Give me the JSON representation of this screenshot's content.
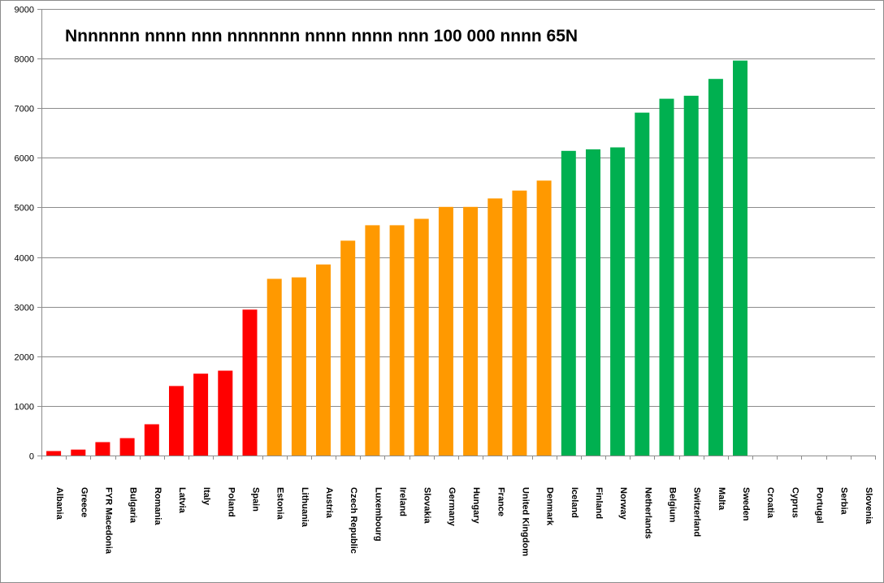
{
  "chart_data": {
    "type": "bar",
    "title": "Nnnnnnn nnnn nnn nnnnnnn nnnn nnnn nnn 100 000 nnnn 65N",
    "xlabel": "",
    "ylabel": "",
    "ylim": [
      0,
      9000
    ],
    "yticks": [
      0,
      1000,
      2000,
      3000,
      4000,
      5000,
      6000,
      7000,
      8000,
      9000
    ],
    "grid": true,
    "legend": "none",
    "categories": [
      "Albania",
      "Greece",
      "FYR Macedonia",
      "Bulgaria",
      "Romania",
      "Latvia",
      "Italy",
      "Poland",
      "Spain",
      "Estonia",
      "Lithuania",
      "Austria",
      "Czech Republic",
      "Luxembourg",
      "Ireland",
      "Slovakia",
      "Germany",
      "Hungary",
      "France",
      "United Kingdom",
      "Denmark",
      "Iceland",
      "Finland",
      "Norway",
      "Netherlands",
      "Belgium",
      "Switzerland",
      "Malta",
      "Sweden",
      "Croatia",
      "Cyprus",
      "Portugal",
      "Serbia",
      "Slovenia"
    ],
    "values": [
      90,
      120,
      270,
      350,
      630,
      1400,
      1650,
      1710,
      2940,
      3560,
      3590,
      3850,
      4330,
      4640,
      4640,
      4770,
      5010,
      5010,
      5180,
      5340,
      5540,
      6140,
      6170,
      6210,
      6910,
      7190,
      7250,
      7590,
      7960,
      null,
      null,
      null,
      null,
      null
    ],
    "bar_colors": [
      "#ff0000",
      "#ff0000",
      "#ff0000",
      "#ff0000",
      "#ff0000",
      "#ff0000",
      "#ff0000",
      "#ff0000",
      "#ff0000",
      "#ff9900",
      "#ff9900",
      "#ff9900",
      "#ff9900",
      "#ff9900",
      "#ff9900",
      "#ff9900",
      "#ff9900",
      "#ff9900",
      "#ff9900",
      "#ff9900",
      "#ff9900",
      "#00b050",
      "#00b050",
      "#00b050",
      "#00b050",
      "#00b050",
      "#00b050",
      "#00b050",
      "#00b050",
      "#00b050",
      "#00b050",
      "#00b050",
      "#00b050",
      "#00b050"
    ],
    "colors": {
      "low": "#ff0000",
      "mid": "#ff9900",
      "high": "#00b050",
      "gridline": "#8c8c8c"
    }
  }
}
